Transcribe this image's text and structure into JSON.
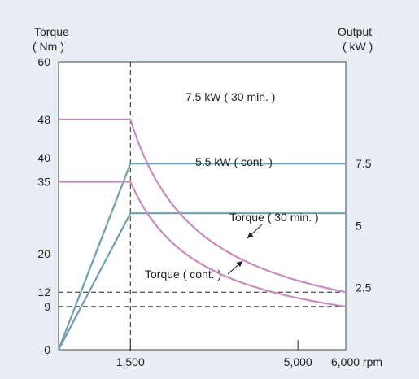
{
  "chart_data": {
    "type": "line",
    "xlabel_unit": "rpm",
    "x_ticks": [
      {
        "value": 1500,
        "label": "1,500"
      },
      {
        "value": 5000,
        "label": "5,000"
      },
      {
        "value": 6000,
        "label": "6,000 rpm"
      }
    ],
    "xlim": [
      0,
      6000
    ],
    "left_axis": {
      "title_line1": "Torque",
      "title_line2": "( Nm )",
      "ylim": [
        0,
        60
      ],
      "ticks": [
        {
          "value": 0,
          "label": "0"
        },
        {
          "value": 9,
          "label": "9"
        },
        {
          "value": 12,
          "label": "12"
        },
        {
          "value": 20,
          "label": "20"
        },
        {
          "value": 35,
          "label": "35"
        },
        {
          "value": 40,
          "label": "40"
        },
        {
          "value": 48,
          "label": "48"
        },
        {
          "value": 60,
          "label": "60"
        }
      ]
    },
    "right_axis": {
      "title_line1": "Output",
      "title_line2": "( kW )",
      "ylim": [
        0,
        11.6
      ],
      "ticks": [
        {
          "value": 2.5,
          "label": "2.5"
        },
        {
          "value": 5,
          "label": "5"
        },
        {
          "value": 7.5,
          "label": "7.5"
        }
      ]
    },
    "series": [
      {
        "name": "7.5 kW ( 30 min. )",
        "axis": "right",
        "color": "#6f9fb3",
        "points": [
          [
            0,
            0
          ],
          [
            1500,
            7.5
          ],
          [
            6000,
            7.5
          ]
        ]
      },
      {
        "name": "5.5 kW ( cont. )",
        "axis": "right",
        "color": "#6f9fb3",
        "points": [
          [
            0,
            0
          ],
          [
            1500,
            5.5
          ],
          [
            6000,
            5.5
          ]
        ]
      },
      {
        "name": "Torque ( 30 min. )",
        "axis": "left",
        "color": "#c98bbf",
        "constant_torque": 48,
        "base_rpm": 1500,
        "end_torque": 12
      },
      {
        "name": "Torque ( cont. )",
        "axis": "left",
        "color": "#c98bbf",
        "constant_torque": 35,
        "base_rpm": 1500,
        "end_torque": 9
      }
    ],
    "reference_lines": [
      {
        "type": "vertical",
        "x": 1500
      },
      {
        "type": "horizontal",
        "y": 12,
        "axis": "left"
      },
      {
        "type": "horizontal",
        "y": 9,
        "axis": "left"
      }
    ],
    "grid": false
  }
}
